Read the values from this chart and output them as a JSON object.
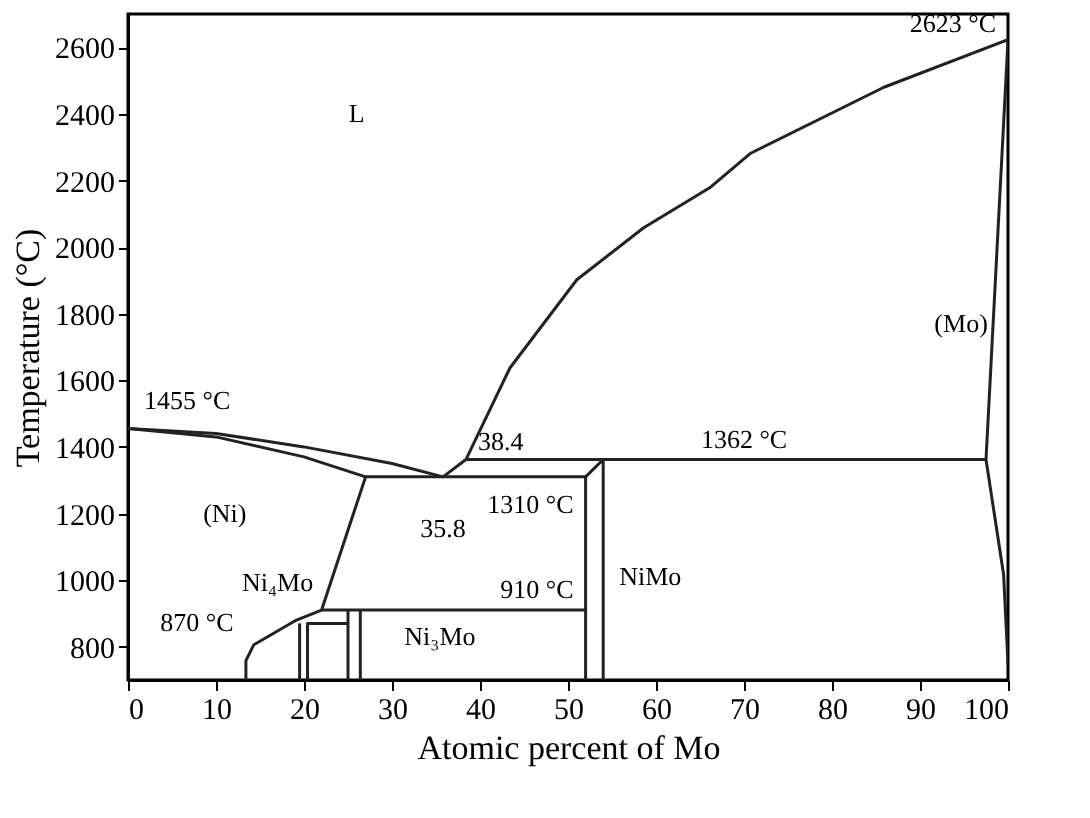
{
  "chart_data": {
    "type": "line",
    "xlabel": "Atomic percent of Mo",
    "ylabel": "Temperature (°C)",
    "xlim": [
      0,
      100
    ],
    "ylim": [
      700,
      2700
    ],
    "xticks": [
      0,
      10,
      20,
      30,
      40,
      50,
      60,
      70,
      80,
      90,
      100
    ],
    "yticks": [
      800,
      1000,
      1200,
      1400,
      1600,
      1800,
      2000,
      2200,
      2400,
      2600
    ],
    "grid": false,
    "marker": "none",
    "line_style": "solid",
    "series": [
      {
        "color": "#222222",
        "x": [
          0,
          10,
          20,
          30,
          35.8,
          38.4,
          43.4,
          51,
          58.6,
          66.1,
          70.7,
          85.9,
          100,
          97.5,
          99.5,
          100
        ],
        "values": [
          1455,
          1440,
          1400,
          1350,
          1310,
          1362,
          1637,
          1902,
          2058,
          2178,
          2281,
          2480,
          2623,
          1362,
          1017,
          750
        ]
      },
      {
        "color": "#222222",
        "x": [
          0,
          10,
          20,
          27,
          22,
          19,
          14.3,
          13.4,
          13.4
        ],
        "values": [
          1455,
          1430,
          1370,
          1310,
          910,
          878,
          806,
          758,
          700
        ]
      },
      {
        "color": "#222222",
        "x": [
          27,
          52,
          52
        ],
        "values": [
          1310,
          1310,
          700
        ]
      },
      {
        "color": "#222222",
        "x": [
          52,
          54,
          54
        ],
        "values": [
          1310,
          1362,
          700
        ]
      },
      {
        "color": "#222222",
        "x": [
          38.4,
          97.5
        ],
        "values": [
          1362,
          1362
        ]
      },
      {
        "color": "#222222",
        "x": [
          22,
          52
        ],
        "values": [
          910,
          910
        ]
      },
      {
        "color": "#222222",
        "x": [
          19.5,
          19.5
        ],
        "values": [
          700,
          870
        ]
      },
      {
        "color": "#222222",
        "x": [
          20.4,
          20.4,
          25
        ],
        "values": [
          700,
          870,
          870
        ]
      },
      {
        "color": "#222222",
        "x": [
          25,
          25
        ],
        "values": [
          700,
          910
        ]
      },
      {
        "color": "#222222",
        "x": [
          26.4,
          26.4
        ],
        "values": [
          700,
          910
        ]
      }
    ],
    "annotations": [
      "L",
      {
        "text": "1455 °C",
        "x": 0,
        "y": 1455
      },
      "(Ni)",
      {
        "text": "38.4",
        "x": 38.4,
        "y": 1362
      },
      {
        "text": "35.8",
        "x": 35.8,
        "y": 1310
      },
      {
        "text": "1310 °C",
        "x": 52,
        "y": 1310
      },
      {
        "text": "910 °C",
        "x": 52,
        "y": 910
      },
      {
        "text": "870 °C",
        "x": 17,
        "y": 870
      },
      "Ni₄Mo",
      {
        "text": "Ni₃Mo",
        "x": 26.4,
        "y": 830
      },
      {
        "text": "NiMo",
        "x": 54,
        "y": 1010
      },
      {
        "text": "1362 °C",
        "x": 70,
        "y": 1362
      },
      {
        "text": "2623 °C",
        "x": 100,
        "y": 2623
      },
      {
        "text": "(Mo)",
        "x": 97.85,
        "y": 1540
      }
    ]
  }
}
